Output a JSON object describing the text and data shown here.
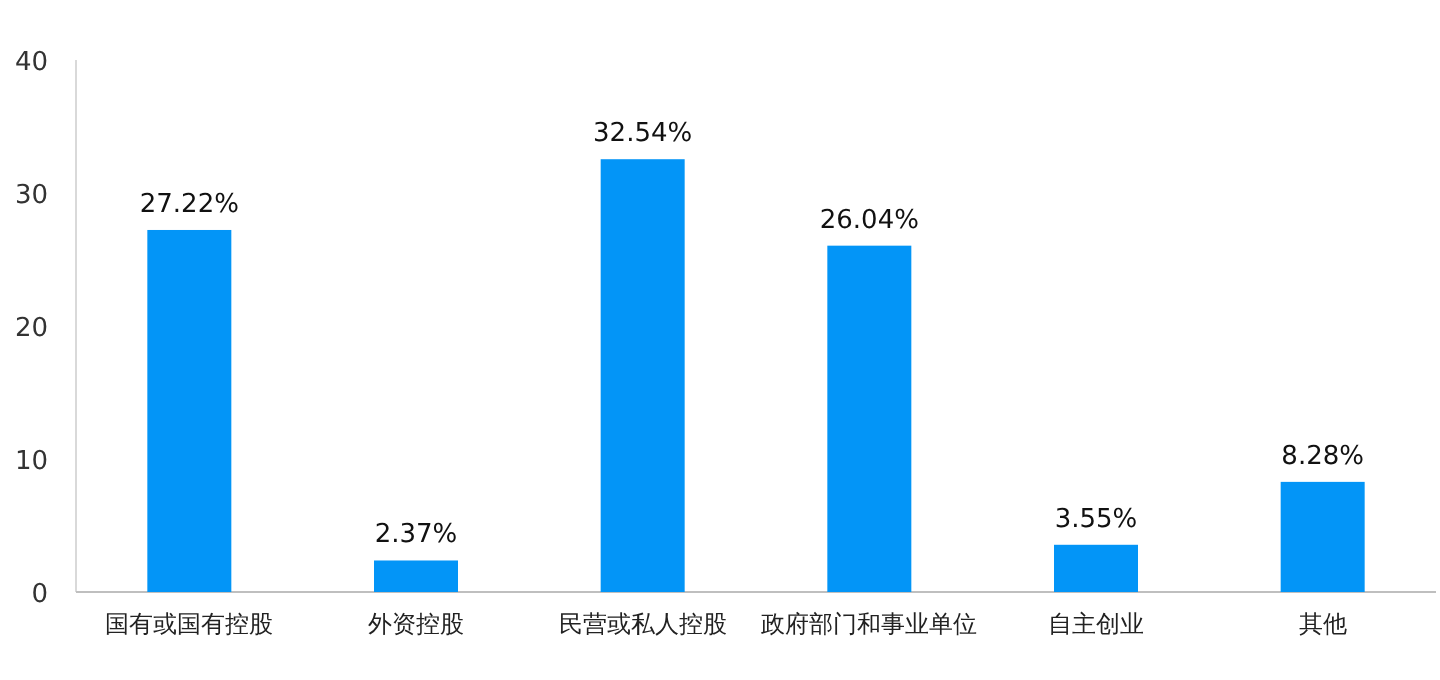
{
  "chart_data": {
    "type": "bar",
    "categories": [
      "国有或国有控股",
      "外资控股",
      "民营或私人控股",
      "政府部门和事业单位",
      "自主创业",
      "其他"
    ],
    "values": [
      27.22,
      2.37,
      32.54,
      26.04,
      3.55,
      8.28
    ],
    "value_labels": [
      "27.22%",
      "2.37%",
      "32.54%",
      "26.04%",
      "3.55%",
      "8.28%"
    ],
    "color": "#0395f7",
    "ylim": [
      0,
      40
    ],
    "yticks": [
      0,
      10,
      20,
      30,
      40
    ]
  }
}
